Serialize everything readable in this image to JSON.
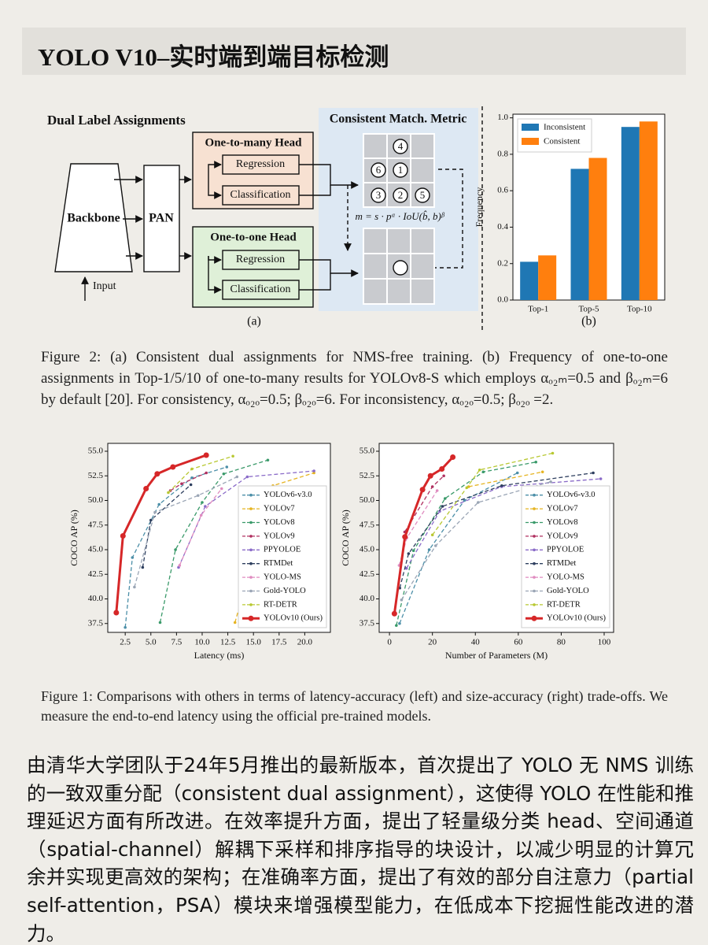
{
  "header": {
    "title": "YOLO V10–实时端到端目标检测"
  },
  "figure2": {
    "diagram": {
      "title": "Dual Label Assignments",
      "backbone": "Backbone",
      "pan": "PAN",
      "input": "Input",
      "one_to_many": {
        "title": "One-to-many Head",
        "regression": "Regression",
        "classification": "Classification"
      },
      "one_to_one": {
        "title": "One-to-one Head",
        "regression": "Regression",
        "classification": "Classification"
      },
      "metric_title": "Consistent Match. Metric",
      "formula": "m = s · pᵅ · IoU(b̂, b)ᵝ",
      "ranks": [
        "4",
        "6",
        "1",
        "3",
        "2",
        "5"
      ],
      "panel_label": "(a)"
    },
    "caption": "Figure 2: (a) Consistent dual assignments for NMS-free training. (b) Frequency of one-to-one assignments in Top-1/5/10 of one-to-many results for YOLOv8-S which employs αₒ₂ₘ=0.5 and βₒ₂ₘ=6 by default [20]. For consistency, αₒ₂ₒ=0.5; βₒ₂ₒ=6. For inconsistency, αₒ₂ₒ=0.5; βₒ₂ₒ =2."
  },
  "figure1": {
    "caption": "Figure 1: Comparisons with others in terms of latency-accuracy (left) and size-accuracy (right) trade-offs. We measure the end-to-end latency using the official pre-trained models."
  },
  "paragraph": "由清华大学团队于24年5月推出的最新版本，首次提出了 YOLO 无 NMS 训练的一致双重分配（consistent dual assignment），这使得 YOLO 在性能和推理延迟方面有所改进。在效率提升方面，提出了轻量级分类 head、空间通道（spatial-channel）解耦下采样和排序指导的块设计，以减少明显的计算冗余并实现更高效的架构；在准确率方面，提出了有效的部分自注意力（partial self-attention，PSA）模块来增强模型能力，在低成本下挖掘性能改进的潜力。",
  "chart_data": [
    {
      "type": "bar",
      "ylabel": "Frequency",
      "panel_label": "(b)",
      "categories": [
        "Top-1",
        "Top-5",
        "Top-10"
      ],
      "series": [
        {
          "name": "Inconsistent",
          "color": "#1f77b4",
          "values": [
            0.21,
            0.72,
            0.95
          ]
        },
        {
          "name": "Consistent",
          "color": "#ff7f0e",
          "values": [
            0.245,
            0.78,
            0.98
          ]
        }
      ],
      "ylim": [
        0,
        1.02
      ],
      "yticks": [
        {
          "value": 0,
          "label": "0.0"
        },
        0.2,
        0.4,
        0.6,
        0.8,
        {
          "value": 1,
          "label": "1.0"
        }
      ],
      "legend": "upper left"
    },
    {
      "type": "line",
      "xlabel": "Latency (ms)",
      "ylabel": "COCO AP (%)",
      "xlim": [
        0.8,
        22.5
      ],
      "xticks": [
        2.5,
        {
          "value": 5,
          "label": "5.0"
        },
        7.5,
        {
          "value": 10,
          "label": "10.0"
        },
        12.5,
        {
          "value": 15,
          "label": "15.0"
        },
        17.5,
        {
          "value": 20,
          "label": "20.0"
        }
      ],
      "ylim": [
        36.6,
        55.8
      ],
      "yticks": [
        37.5,
        {
          "value": 40,
          "label": "40.0"
        },
        42.5,
        {
          "value": 45,
          "label": "45.0"
        },
        47.5,
        {
          "value": 50,
          "label": "50.0"
        },
        52.5,
        {
          "value": 55,
          "label": "55.0"
        }
      ],
      "legend": "lower right",
      "series": [
        {
          "name": "YOLOv6-v3.0",
          "color": "#4c8fa8",
          "linestyle": "dashed",
          "x": [
            2.5,
            3.2,
            5.8,
            9.0,
            12.4
          ],
          "values": [
            37.1,
            44.2,
            49.6,
            52.3,
            53.4
          ]
        },
        {
          "name": "YOLOv7",
          "color": "#e6b422",
          "linestyle": "dashed",
          "x": [
            13.2,
            16.9,
            20.9
          ],
          "values": [
            37.6,
            51.5,
            52.8
          ]
        },
        {
          "name": "YOLOv8",
          "color": "#3a9a6a",
          "linestyle": "dashed",
          "x": [
            5.9,
            7.4,
            10.0,
            12.1,
            16.4
          ],
          "values": [
            37.6,
            45.0,
            49.8,
            52.7,
            54.1
          ]
        },
        {
          "name": "YOLOv9",
          "color": "#b03060",
          "linestyle": "dashed",
          "x": [
            6.9,
            8.0,
            10.4
          ],
          "values": [
            51.0,
            51.7,
            52.8
          ]
        },
        {
          "name": "PPYOLOE",
          "color": "#8a6bc8",
          "linestyle": "dashed",
          "x": [
            7.7,
            10.3,
            14.4,
            20.9
          ],
          "values": [
            43.2,
            49.4,
            52.4,
            53.0
          ]
        },
        {
          "name": "RTMDet",
          "color": "#2e3f5f",
          "linestyle": "dashed",
          "x": [
            4.2,
            5.0,
            8.9
          ],
          "values": [
            43.2,
            48.0,
            51.6
          ]
        },
        {
          "name": "YOLO-MS",
          "color": "#e08cc0",
          "linestyle": "dashed",
          "x": [
            7.8,
            9.9,
            11.9
          ],
          "values": [
            43.4,
            48.5,
            51.2
          ]
        },
        {
          "name": "Gold-YOLO",
          "color": "#9aa5b5",
          "linestyle": "dashed",
          "x": [
            3.4,
            5.4,
            9.6,
            13.4
          ],
          "values": [
            41.2,
            48.8,
            50.5,
            52.4
          ]
        },
        {
          "name": "RT-DETR",
          "color": "#b8c832",
          "linestyle": "dashed",
          "x": [
            6.7,
            9.0,
            13.0
          ],
          "values": [
            50.8,
            53.2,
            54.5
          ]
        },
        {
          "name": "YOLOv10 (Ours)",
          "color": "#d62728",
          "linestyle": "solid",
          "x": [
            1.63,
            2.28,
            4.53,
            5.62,
            7.15,
            10.4
          ],
          "values": [
            38.6,
            46.4,
            51.2,
            52.7,
            53.4,
            54.6
          ]
        }
      ]
    },
    {
      "type": "line",
      "xlabel": "Number of Parameters (M)",
      "ylabel": "COCO AP (%)",
      "xlim": [
        -4.8,
        104.4
      ],
      "xticks": [
        0,
        20,
        40,
        60,
        80,
        100
      ],
      "ylim": [
        36.6,
        55.8
      ],
      "yticks": [
        37.5,
        {
          "value": 40,
          "label": "40.0"
        },
        42.5,
        {
          "value": 45,
          "label": "45.0"
        },
        47.5,
        {
          "value": 50,
          "label": "50.0"
        },
        52.5,
        {
          "value": 55,
          "label": "55.0"
        }
      ],
      "legend": "lower right",
      "series": [
        {
          "name": "YOLOv6-v3.0",
          "color": "#4c8fa8",
          "linestyle": "dashed",
          "x": [
            4.7,
            18.5,
            34.9,
            59.6
          ],
          "values": [
            37.5,
            45.0,
            50.0,
            52.8
          ]
        },
        {
          "name": "YOLOv7",
          "color": "#e6b422",
          "linestyle": "dashed",
          "x": [
            36.9,
            71.3
          ],
          "values": [
            51.4,
            52.9
          ]
        },
        {
          "name": "YOLOv8",
          "color": "#3a9a6a",
          "linestyle": "dashed",
          "x": [
            3.2,
            11.2,
            25.9,
            43.7,
            68.2
          ],
          "values": [
            37.3,
            44.9,
            50.2,
            52.9,
            53.9
          ]
        },
        {
          "name": "YOLOv9",
          "color": "#b03060",
          "linestyle": "dashed",
          "x": [
            7.1,
            20,
            25.3
          ],
          "values": [
            46.8,
            51.4,
            52.5
          ]
        },
        {
          "name": "PPYOLOE",
          "color": "#8a6bc8",
          "linestyle": "dashed",
          "x": [
            7.9,
            23.4,
            52.2,
            98.4
          ],
          "values": [
            43.1,
            48.9,
            51.4,
            52.2
          ]
        },
        {
          "name": "RTMDet",
          "color": "#2e3f5f",
          "linestyle": "dashed",
          "x": [
            4.8,
            8.9,
            24.7,
            52.3,
            94.9
          ],
          "values": [
            41.1,
            44.6,
            49.4,
            51.5,
            52.8
          ]
        },
        {
          "name": "YOLO-MS",
          "color": "#e08cc0",
          "linestyle": "dashed",
          "x": [
            4.5,
            8.1,
            22.2
          ],
          "values": [
            43.4,
            46.2,
            51.0
          ]
        },
        {
          "name": "Gold-YOLO",
          "color": "#9aa5b5",
          "linestyle": "dashed",
          "x": [
            5.6,
            21.5,
            41.3,
            75.1
          ],
          "values": [
            39.9,
            45.4,
            49.8,
            51.9
          ]
        },
        {
          "name": "RT-DETR",
          "color": "#b8c832",
          "linestyle": "dashed",
          "x": [
            20,
            36,
            42,
            76
          ],
          "values": [
            46.5,
            51.3,
            53.1,
            54.8
          ]
        },
        {
          "name": "YOLOv10 (Ours)",
          "color": "#d62728",
          "linestyle": "solid",
          "x": [
            2.3,
            7.2,
            15.4,
            19.1,
            24.4,
            29.5
          ],
          "values": [
            38.5,
            46.3,
            51.1,
            52.5,
            53.2,
            54.4
          ]
        }
      ]
    }
  ]
}
